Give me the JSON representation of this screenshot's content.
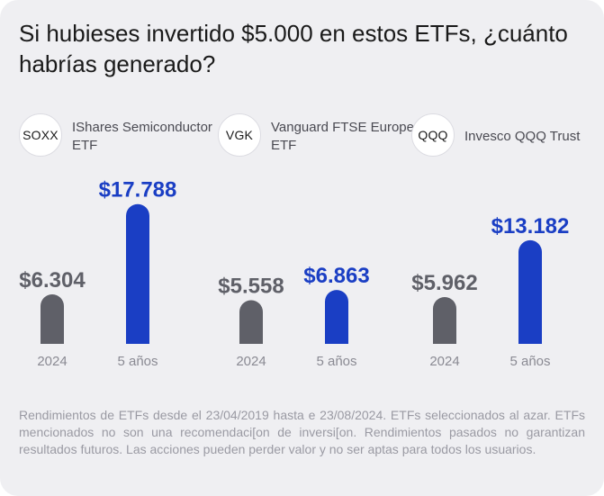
{
  "title": "Si hubieses invertido $5.000 en estos ETFs, ¿cuánto habrías generado?",
  "colors": {
    "before": "#5f6068",
    "after": "#1a3ec4",
    "label_before": "#5f6068",
    "label_after": "#1a3ec4"
  },
  "etfs": [
    {
      "ticker": "SOXX",
      "name": "IShares Semiconductor ETF"
    },
    {
      "ticker": "VGK",
      "name": "Vanguard FTSE Europe ETF"
    },
    {
      "ticker": "QQQ",
      "name": "Invesco QQQ Trust"
    }
  ],
  "chart_data": {
    "type": "bar",
    "title": "Si hubieses invertido $5.000 en estos ETFs, ¿cuánto habrías generado?",
    "categories": [
      "2024",
      "5 años"
    ],
    "groups": [
      {
        "name": "SOXX",
        "values": [
          6304,
          17788
        ],
        "labels": [
          "$6.304",
          "$17.788"
        ]
      },
      {
        "name": "VGK",
        "values": [
          5558,
          6863
        ],
        "labels": [
          "$5.558",
          "$6.863"
        ]
      },
      {
        "name": "QQQ",
        "values": [
          5962,
          13182
        ],
        "labels": [
          "$5.962",
          "$13.182"
        ]
      }
    ],
    "xlabel": "",
    "ylabel": "",
    "grid": false
  },
  "footnote": "Rendimientos de ETFs desde el 23/04/2019 hasta e 23/08/2024. ETFs seleccionados al azar. ETFs mencionados no son una recomendaci[on de inversi[on. Rendimientos pasados no garantizan resultados futuros. Las acciones pueden perder valor y no ser aptas para todos los usuarios."
}
